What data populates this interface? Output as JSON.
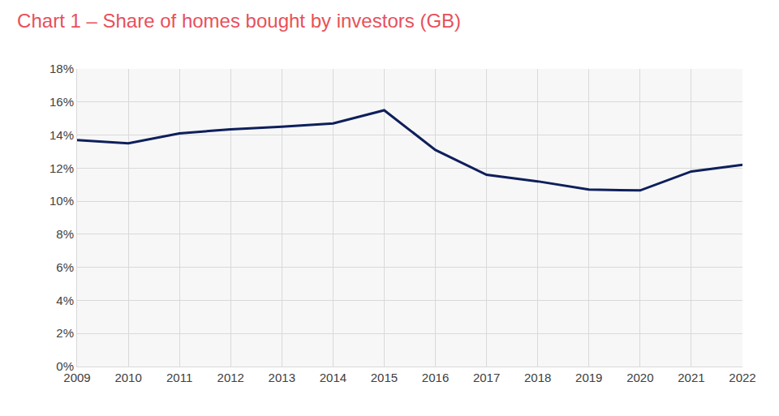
{
  "chart_data": {
    "type": "line",
    "title": "Chart 1 – Share of homes bought by investors (GB)",
    "categories": [
      "2009",
      "2010",
      "2011",
      "2012",
      "2013",
      "2014",
      "2015",
      "2016",
      "2017",
      "2018",
      "2019",
      "2020",
      "2021",
      "2022"
    ],
    "values": [
      13.7,
      13.5,
      14.1,
      14.35,
      14.5,
      14.7,
      15.5,
      13.1,
      11.6,
      11.2,
      10.7,
      10.65,
      11.8,
      12.2
    ],
    "color": "#0e1f5b",
    "ylim": [
      0,
      18
    ],
    "yticks": [
      {
        "value": 0,
        "label": "0%"
      },
      {
        "value": 2,
        "label": "2%"
      },
      {
        "value": 4,
        "label": "4%"
      },
      {
        "value": 6,
        "label": "6%"
      },
      {
        "value": 8,
        "label": "8%"
      },
      {
        "value": 10,
        "label": "10%"
      },
      {
        "value": 12,
        "label": "12%"
      },
      {
        "value": 14,
        "label": "14%"
      },
      {
        "value": 16,
        "label": "16%"
      },
      {
        "value": 18,
        "label": "18%"
      }
    ],
    "grid": true
  }
}
